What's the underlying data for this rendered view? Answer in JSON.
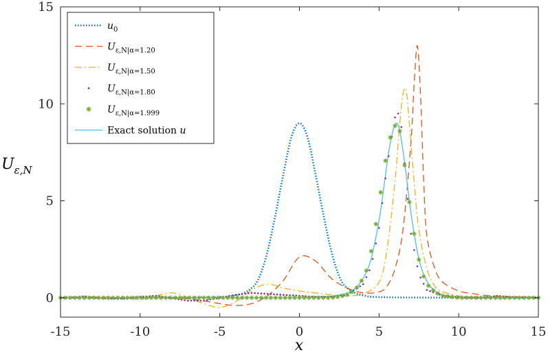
{
  "chart_data": {
    "type": "line",
    "title": "",
    "xlabel": "x",
    "ylabel": "U",
    "ylabel_sub": "ε,N",
    "xlim": [
      -15,
      15
    ],
    "ylim": [
      -1,
      15
    ],
    "xticks": [
      -15,
      -10,
      -5,
      0,
      5,
      10,
      15
    ],
    "yticks": [
      0,
      5,
      10,
      15
    ],
    "xtick_labels": [
      "-15",
      "-10",
      "-5",
      "0",
      "5",
      "10",
      "15"
    ],
    "ytick_labels": [
      "0",
      "5",
      "10",
      "15"
    ],
    "grid": false,
    "legend_position": "top-left",
    "series": [
      {
        "name": "u0",
        "label": {
          "main": "u",
          "sub": "0",
          "tail": ""
        },
        "style": "dotted",
        "color": "#0072BD",
        "x": [
          -15,
          -6,
          -4,
          -3,
          -2.5,
          -2,
          -1.5,
          -1,
          -0.5,
          0,
          0.5,
          1,
          1.5,
          2,
          2.5,
          3,
          4,
          6,
          15
        ],
        "y": [
          0,
          0.02,
          0.12,
          0.5,
          1.1,
          2.4,
          4.3,
          6.4,
          8.3,
          9.0,
          8.3,
          6.4,
          4.3,
          2.4,
          1.1,
          0.5,
          0.12,
          0.02,
          0
        ]
      },
      {
        "name": "U alpha 1.20",
        "label": {
          "main": "U",
          "sub": "ε,N",
          "tail": "|α=1.20"
        },
        "style": "dashed",
        "color": "#D95319",
        "x": [
          -15,
          -13,
          -11,
          -9,
          -7,
          -5,
          -4,
          -3,
          -2,
          -1,
          0,
          1,
          2,
          3,
          4,
          5,
          5.5,
          6,
          6.5,
          7,
          7.2,
          7.4,
          7.6,
          7.8,
          8,
          8.5,
          9,
          10,
          11,
          12,
          15
        ],
        "y": [
          0,
          0,
          0,
          0,
          -0.05,
          -0.3,
          -0.4,
          -0.3,
          0.1,
          0.9,
          2.1,
          1.9,
          1.0,
          0.5,
          0.25,
          0.3,
          0.6,
          1.5,
          3.5,
          8.0,
          11.0,
          13.0,
          10.5,
          6.0,
          3.2,
          1.5,
          0.8,
          0.35,
          0.2,
          0.1,
          0
        ]
      },
      {
        "name": "U alpha 1.50",
        "label": {
          "main": "U",
          "sub": "ε,N",
          "tail": "|α=1.50"
        },
        "style": "dashdot",
        "color": "#EDB120",
        "x": [
          -15,
          -13,
          -11,
          -10,
          -9,
          -8,
          -7,
          -6,
          -5,
          -4,
          -3,
          -2,
          -1,
          0,
          1,
          2,
          3,
          4,
          5,
          5.5,
          6,
          6.3,
          6.5,
          6.7,
          6.9,
          7.2,
          7.5,
          8,
          8.5,
          9,
          10,
          11,
          15
        ],
        "y": [
          0,
          0.05,
          0,
          -0.1,
          0.1,
          0.25,
          0,
          -0.3,
          -0.5,
          -0.2,
          0.4,
          0.7,
          0.5,
          0.35,
          0.25,
          0.15,
          0.1,
          0.2,
          0.8,
          2.5,
          6.0,
          9.0,
          10.5,
          10.7,
          9.0,
          6.0,
          3.5,
          1.5,
          0.6,
          0.3,
          0.1,
          0.05,
          0
        ]
      },
      {
        "name": "U alpha 1.80",
        "label": {
          "main": "U",
          "sub": "ε,N",
          "tail": "|α=1.80"
        },
        "style": "markers-dot",
        "color": "#7E2F8E",
        "x": [
          -15,
          -14,
          -13.5,
          -13,
          -12,
          -11,
          -10,
          -9,
          -8,
          -7,
          -6,
          -5,
          -4,
          -3,
          -2,
          -1,
          0,
          1,
          2,
          3,
          4,
          4.5,
          5,
          5.5,
          6,
          6.2,
          6.4,
          6.7,
          7,
          7.5,
          8,
          9,
          10,
          11,
          12,
          12.5,
          13,
          15
        ],
        "y": [
          0,
          0.02,
          0.08,
          0.02,
          -0.05,
          -0.05,
          0.05,
          0.1,
          -0.02,
          -0.15,
          -0.15,
          0,
          0.15,
          0.25,
          0.2,
          0.15,
          0.1,
          0.05,
          0.05,
          0.15,
          0.7,
          1.6,
          3.6,
          6.8,
          9.3,
          9.5,
          8.8,
          6.0,
          3.3,
          1.2,
          0.4,
          0.1,
          0.03,
          0,
          0.05,
          0.1,
          0.05,
          0
        ]
      },
      {
        "name": "U alpha 1.999",
        "label": {
          "main": "U",
          "sub": "ε,N",
          "tail": "|α=1.999"
        },
        "style": "markers-star",
        "color": "#77AC30",
        "x": [
          -15,
          -14,
          -13,
          -12,
          -11,
          -10,
          -9,
          -8,
          -7,
          -6,
          -5,
          -4,
          -3,
          -2.5,
          -2,
          -1.5,
          -1,
          -0.5,
          0,
          0.5,
          1,
          1.5,
          2,
          2.5,
          3,
          3.5,
          4,
          4.3,
          4.6,
          4.9,
          5.2,
          5.5,
          5.8,
          6.1,
          6.3,
          6.5,
          6.8,
          7.1,
          7.4,
          7.7,
          8,
          8.5,
          9,
          10,
          11,
          12,
          13,
          14,
          15
        ],
        "y": [
          0,
          0,
          0,
          0,
          0,
          0,
          0,
          0,
          0,
          0,
          0,
          0,
          0,
          0,
          0,
          0,
          0,
          0,
          0,
          0,
          0,
          0,
          0,
          0.05,
          0.15,
          0.4,
          1.0,
          1.6,
          2.8,
          4.3,
          6.0,
          7.6,
          8.6,
          9.0,
          8.6,
          7.5,
          5.5,
          3.8,
          2.3,
          1.3,
          0.7,
          0.3,
          0.1,
          0,
          0,
          0,
          0,
          0,
          0
        ]
      },
      {
        "name": "Exact solution",
        "label": {
          "main": "Exact solution ",
          "sub": "",
          "tail": "u"
        },
        "style": "solid",
        "color": "#4DBEEE",
        "x": [
          -15,
          -3,
          -2,
          -1,
          0,
          1,
          2,
          3,
          3.5,
          4,
          4.5,
          5,
          5.3,
          5.6,
          5.9,
          6.1,
          6.3,
          6.6,
          6.9,
          7.2,
          7.5,
          7.8,
          8.2,
          8.7,
          9.3,
          10,
          11,
          15
        ],
        "y": [
          0,
          0,
          0,
          0,
          0.01,
          0.03,
          0.08,
          0.25,
          0.5,
          1.0,
          2.0,
          4.0,
          5.7,
          7.5,
          8.7,
          9.0,
          8.6,
          7.0,
          5.0,
          3.3,
          2.0,
          1.2,
          0.6,
          0.25,
          0.08,
          0.02,
          0,
          0
        ]
      }
    ]
  }
}
